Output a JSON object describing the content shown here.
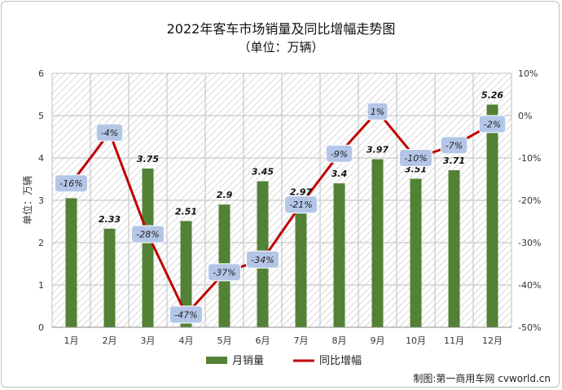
{
  "chart_data": {
    "type": "bar+line",
    "title": "2022年客车市场销量及同比增幅走势图",
    "subtitle": "（单位：万辆）",
    "ylabel": "单位：万辆",
    "categories": [
      "1月",
      "2月",
      "3月",
      "4月",
      "5月",
      "6月",
      "7月",
      "8月",
      "9月",
      "10月",
      "11月",
      "12月"
    ],
    "series": [
      {
        "name": "月销量",
        "type": "bar",
        "axis": "left",
        "color": "#538135",
        "values": [
          3.05,
          2.33,
          3.75,
          2.51,
          2.9,
          3.45,
          2.97,
          3.4,
          3.97,
          3.51,
          3.71,
          5.26
        ],
        "labels": [
          "",
          "2.33",
          "3.75",
          "2.51",
          "2.9",
          "3.45",
          "2.97",
          "3.4",
          "3.97",
          "3.51",
          "3.71",
          "5.26"
        ]
      },
      {
        "name": "同比增幅",
        "type": "line",
        "axis": "right",
        "color": "#c00000",
        "values": [
          -16,
          -4,
          -28,
          -47,
          -37,
          -34,
          -21,
          -9,
          1,
          -10,
          -7,
          -2
        ],
        "labels": [
          "-16%",
          "-4%",
          "-28%",
          "-47%",
          "-37%",
          "-34%",
          "-21%",
          "-9%",
          "1%",
          "-10%",
          "-7%",
          "-2%"
        ]
      }
    ],
    "y_left": {
      "range": [
        0,
        6
      ],
      "ticks": [
        "0",
        "1",
        "2",
        "3",
        "4",
        "5",
        "6"
      ]
    },
    "y_right": {
      "range": [
        -50,
        10
      ],
      "ticks": [
        "-50%",
        "-40%",
        "-30%",
        "-20%",
        "-10%",
        "0%",
        "10%"
      ]
    },
    "grid": true,
    "legend": "bottom",
    "colors": {
      "bar": "#538135",
      "line": "#c00000",
      "label_box": "#b4c6e7",
      "hatch_line": "#d9d9d9"
    }
  },
  "credit": "制图:第一商用车网 cvworld.cn"
}
